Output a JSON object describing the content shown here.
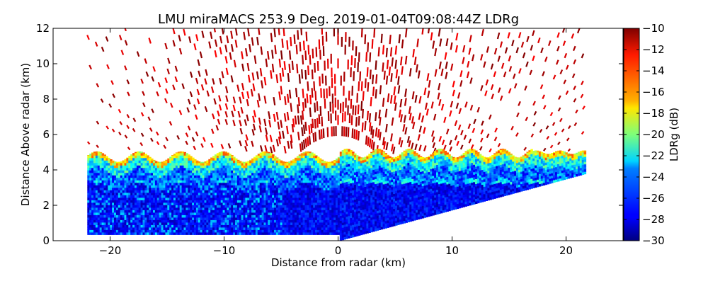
{
  "chart_data": {
    "type": "heatmap",
    "title": "LMU miraMACS 253.9 Deg. 2019-01-04T09:08:44Z  LDRg",
    "xlabel": "Distance from radar (km)",
    "ylabel": "Distance Above radar  (km)",
    "xlim": [
      -25,
      25
    ],
    "ylim": [
      0,
      12
    ],
    "x_ticks": [
      -20,
      -10,
      0,
      10,
      20
    ],
    "x_tick_labels": [
      "−20",
      "−10",
      "0",
      "10",
      "20"
    ],
    "y_ticks": [
      0,
      2,
      4,
      6,
      8,
      10,
      12
    ],
    "y_tick_labels": [
      "0",
      "2",
      "4",
      "6",
      "8",
      "10",
      "12"
    ],
    "scan_extent_km": {
      "x_min": -22,
      "x_max": 21.7,
      "top_of_cloud_km": 5.0,
      "right_edge_top_km": 5.0,
      "right_edge_bottom_km": 3.8
    },
    "noise_region_top_km": 12,
    "colorbar": {
      "label": "LDRg (dB)",
      "range": [
        -30,
        -10
      ],
      "ticks": [
        -10,
        -12,
        -14,
        -16,
        -18,
        -20,
        -22,
        -24,
        -26,
        -28,
        -30
      ],
      "tick_labels": [
        "−10",
        "−12",
        "−14",
        "−16",
        "−18",
        "−20",
        "−22",
        "−24",
        "−26",
        "−28",
        "−30"
      ],
      "colormap": "jet"
    },
    "layers": [
      {
        "name": "ice-cloud-core",
        "z_from_km": 0,
        "z_to_km": 3.2,
        "ldr_db_typical": -28
      },
      {
        "name": "cloud-upper",
        "z_from_km": 3.2,
        "z_to_km": 4.5,
        "ldr_db_typical": -23
      },
      {
        "name": "cloud-top-edge",
        "z_from_km": 4.5,
        "z_to_km": 5.1,
        "ldr_db_typical": -15
      },
      {
        "name": "noise-above-cloud",
        "z_from_km": 5.1,
        "z_to_km": 12,
        "ldr_db_typical": -10
      }
    ]
  }
}
